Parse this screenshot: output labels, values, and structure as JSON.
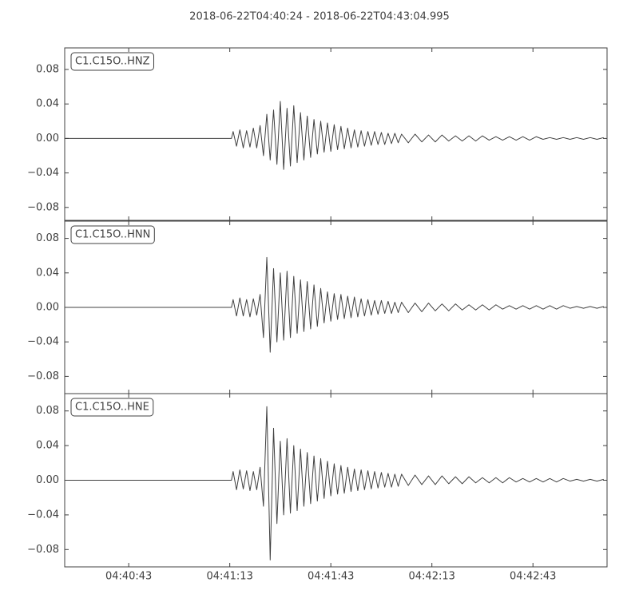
{
  "title": "2018-06-22T04:40:24  -  2018-06-22T04:43:04.995",
  "chart_data": [
    {
      "type": "line",
      "x": [
        0,
        49.5,
        50,
        51,
        52,
        53,
        54,
        55,
        56,
        57,
        58,
        59,
        60,
        61,
        62,
        63,
        64,
        65,
        66,
        67,
        68,
        69,
        70,
        71,
        72,
        73,
        74,
        75,
        76,
        77,
        78,
        79,
        80,
        81,
        82,
        83,
        84,
        85,
        86,
        87,
        88,
        89,
        90,
        91,
        92,
        93,
        94,
        95,
        96,
        97,
        98,
        99,
        100,
        102,
        104,
        106,
        108,
        110,
        112,
        114,
        116,
        118,
        120,
        122,
        124,
        126,
        128,
        130,
        132,
        134,
        136,
        138,
        140,
        142,
        144,
        146,
        148,
        150,
        152,
        154,
        156,
        158,
        160
      ],
      "series": [
        {
          "name": "C1.C15O..HNZ",
          "color": "#404040",
          "values": [
            0,
            0,
            0.008,
            -0.009,
            0.01,
            -0.011,
            0.009,
            -0.01,
            0.012,
            -0.011,
            0.015,
            -0.02,
            0.028,
            -0.025,
            0.033,
            -0.03,
            0.043,
            -0.036,
            0.035,
            -0.032,
            0.038,
            -0.028,
            0.03,
            -0.025,
            0.026,
            -0.022,
            0.022,
            -0.018,
            0.02,
            -0.016,
            0.018,
            -0.015,
            0.016,
            -0.013,
            0.014,
            -0.012,
            0.012,
            -0.011,
            0.01,
            -0.01,
            0.009,
            -0.009,
            0.008,
            -0.008,
            0.008,
            -0.007,
            0.007,
            -0.007,
            0.006,
            -0.006,
            0.006,
            -0.005,
            0.005,
            -0.005,
            0.005,
            -0.004,
            0.004,
            -0.004,
            0.004,
            -0.003,
            0.003,
            -0.003,
            0.003,
            -0.003,
            0.003,
            -0.002,
            0.002,
            -0.002,
            0.002,
            -0.002,
            0.002,
            -0.002,
            0.002,
            -0.001,
            0.001,
            -0.001,
            0.001,
            -0.001,
            0.001,
            -0.001,
            0.001,
            -0.001,
            0.001
          ]
        }
      ],
      "xlim": [
        0,
        160.995
      ],
      "ylim": [
        -0.095,
        0.105
      ],
      "yticks": [
        0.08,
        0.04,
        {
          "value": 0,
          "label": "0.00"
        },
        {
          "value": -0.04,
          "label": "−0.04"
        },
        {
          "value": -0.08,
          "label": "−0.08"
        }
      ]
    },
    {
      "type": "line",
      "x": [
        0,
        49.5,
        50,
        51,
        52,
        53,
        54,
        55,
        56,
        57,
        58,
        59,
        60,
        61,
        62,
        63,
        64,
        65,
        66,
        67,
        68,
        69,
        70,
        71,
        72,
        73,
        74,
        75,
        76,
        77,
        78,
        79,
        80,
        81,
        82,
        83,
        84,
        85,
        86,
        87,
        88,
        89,
        90,
        91,
        92,
        93,
        94,
        95,
        96,
        97,
        98,
        99,
        100,
        102,
        104,
        106,
        108,
        110,
        112,
        114,
        116,
        118,
        120,
        122,
        124,
        126,
        128,
        130,
        132,
        134,
        136,
        138,
        140,
        142,
        144,
        146,
        148,
        150,
        152,
        154,
        156,
        158,
        160
      ],
      "series": [
        {
          "name": "C1.C15O..HNN",
          "color": "#404040",
          "values": [
            0,
            0,
            0.009,
            -0.01,
            0.011,
            -0.01,
            0.009,
            -0.011,
            0.01,
            -0.009,
            0.015,
            -0.035,
            0.058,
            -0.052,
            0.045,
            -0.04,
            0.04,
            -0.038,
            0.042,
            -0.035,
            0.036,
            -0.03,
            0.032,
            -0.028,
            0.03,
            -0.025,
            0.026,
            -0.022,
            0.022,
            -0.018,
            0.018,
            -0.016,
            0.016,
            -0.014,
            0.015,
            -0.013,
            0.013,
            -0.012,
            0.012,
            -0.011,
            0.01,
            -0.01,
            0.009,
            -0.009,
            0.008,
            -0.008,
            0.008,
            -0.007,
            0.007,
            -0.007,
            0.006,
            -0.006,
            0.006,
            -0.006,
            0.005,
            -0.005,
            0.005,
            -0.004,
            0.004,
            -0.004,
            0.004,
            -0.003,
            0.003,
            -0.003,
            0.003,
            -0.003,
            0.003,
            -0.002,
            0.002,
            -0.002,
            0.002,
            -0.002,
            0.002,
            -0.002,
            0.002,
            -0.002,
            0.002,
            -0.001,
            0.001,
            -0.001,
            0.001,
            -0.001,
            0.001
          ]
        }
      ],
      "xlim": [
        0,
        160.995
      ],
      "ylim": [
        -0.1,
        0.1
      ],
      "yticks": [
        0.08,
        0.04,
        {
          "value": 0,
          "label": "0.00"
        },
        {
          "value": -0.04,
          "label": "−0.04"
        },
        {
          "value": -0.08,
          "label": "−0.08"
        }
      ]
    },
    {
      "type": "line",
      "x": [
        0,
        49.5,
        50,
        51,
        52,
        53,
        54,
        55,
        56,
        57,
        58,
        59,
        60,
        61,
        62,
        63,
        64,
        65,
        66,
        67,
        68,
        69,
        70,
        71,
        72,
        73,
        74,
        75,
        76,
        77,
        78,
        79,
        80,
        81,
        82,
        83,
        84,
        85,
        86,
        87,
        88,
        89,
        90,
        91,
        92,
        93,
        94,
        95,
        96,
        97,
        98,
        99,
        100,
        102,
        104,
        106,
        108,
        110,
        112,
        114,
        116,
        118,
        120,
        122,
        124,
        126,
        128,
        130,
        132,
        134,
        136,
        138,
        140,
        142,
        144,
        146,
        148,
        150,
        152,
        154,
        156,
        158,
        160
      ],
      "series": [
        {
          "name": "C1.C15O..HNE",
          "color": "#404040",
          "values": [
            0,
            0,
            0.01,
            -0.011,
            0.012,
            -0.01,
            0.011,
            -0.012,
            0.01,
            -0.011,
            0.015,
            -0.03,
            0.085,
            -0.092,
            0.06,
            -0.05,
            0.045,
            -0.04,
            0.048,
            -0.038,
            0.04,
            -0.035,
            0.036,
            -0.03,
            0.032,
            -0.027,
            0.028,
            -0.024,
            0.025,
            -0.021,
            0.022,
            -0.018,
            0.019,
            -0.016,
            0.017,
            -0.015,
            0.015,
            -0.013,
            0.013,
            -0.012,
            0.012,
            -0.011,
            0.011,
            -0.01,
            0.01,
            -0.009,
            0.009,
            -0.008,
            0.008,
            -0.008,
            0.007,
            -0.007,
            0.007,
            -0.006,
            0.006,
            -0.005,
            0.005,
            -0.005,
            0.005,
            -0.004,
            0.004,
            -0.004,
            0.004,
            -0.003,
            0.003,
            -0.003,
            0.003,
            -0.003,
            0.003,
            -0.002,
            0.002,
            -0.002,
            0.002,
            -0.002,
            0.002,
            -0.002,
            0.002,
            -0.001,
            0.001,
            -0.001,
            0.001,
            -0.001,
            0.001
          ]
        }
      ],
      "xlim": [
        0,
        160.995
      ],
      "ylim": [
        -0.1,
        0.1
      ],
      "yticks": [
        0.08,
        0.04,
        {
          "value": 0,
          "label": "0.00"
        },
        {
          "value": -0.04,
          "label": "−0.04"
        },
        {
          "value": -0.08,
          "label": "−0.08"
        }
      ],
      "xticks": [
        {
          "value": 19,
          "label": "04:40:43"
        },
        {
          "value": 49,
          "label": "04:41:13"
        },
        {
          "value": 79,
          "label": "04:41:43"
        },
        {
          "value": 109,
          "label": "04:42:13"
        },
        {
          "value": 139,
          "label": "04:42:43"
        }
      ]
    }
  ]
}
